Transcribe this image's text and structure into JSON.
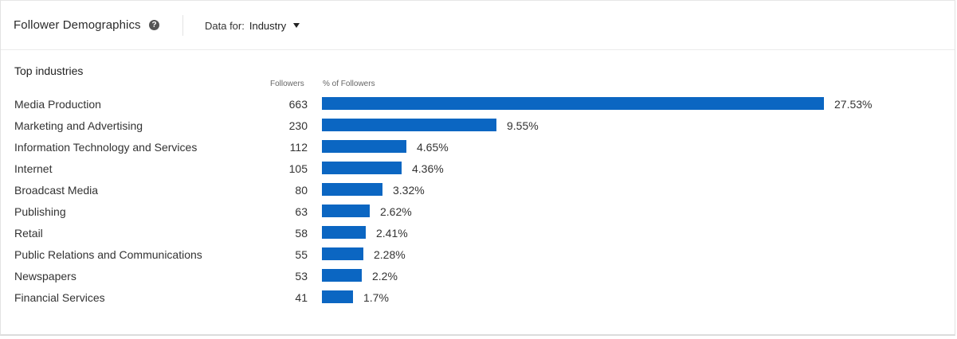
{
  "header": {
    "title": "Follower Demographics",
    "data_for_label": "Data for:",
    "data_for_value": "Industry"
  },
  "section": {
    "title": "Top industries",
    "col_followers": "Followers",
    "col_pct": "% of Followers"
  },
  "colors": {
    "bar": "#0b66c2"
  },
  "chart_data": {
    "type": "bar",
    "orientation": "horizontal",
    "title": "Top industries",
    "categories": [
      "Media Production",
      "Marketing and Advertising",
      "Information Technology and Services",
      "Internet",
      "Broadcast Media",
      "Publishing",
      "Retail",
      "Public Relations and Communications",
      "Newspapers",
      "Financial Services"
    ],
    "followers": [
      663,
      230,
      112,
      105,
      80,
      63,
      58,
      55,
      53,
      41
    ],
    "values": [
      27.53,
      9.55,
      4.65,
      4.36,
      3.32,
      2.62,
      2.41,
      2.28,
      2.2,
      1.7
    ],
    "value_labels": [
      "27.53%",
      "9.55%",
      "4.65%",
      "4.36%",
      "3.32%",
      "2.62%",
      "2.41%",
      "2.28%",
      "2.2%",
      "1.7%"
    ],
    "xlim": [
      0,
      27.53
    ]
  }
}
